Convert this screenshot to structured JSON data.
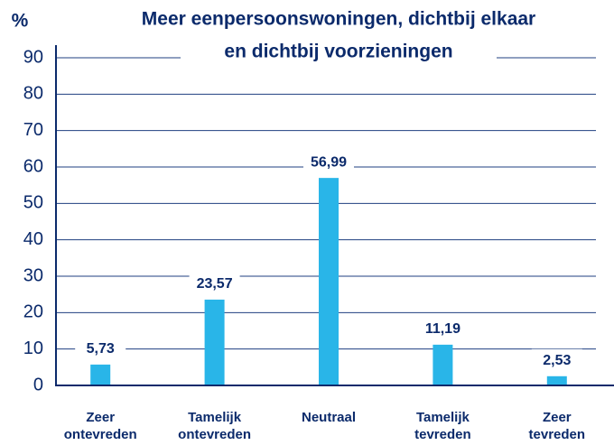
{
  "chart_data": {
    "type": "bar",
    "title": [
      "Meer eenpersoonswoningen, dichtbij elkaar",
      "en dichtbij voorzieningen"
    ],
    "y_label": "%",
    "categories": [
      [
        "Zeer",
        "ontevreden"
      ],
      [
        "Tamelijk",
        "ontevreden"
      ],
      [
        "Neutraal"
      ],
      [
        "Tamelijk",
        "tevreden"
      ],
      [
        "Zeer",
        "tevreden"
      ]
    ],
    "values": [
      5.73,
      23.57,
      56.99,
      11.19,
      2.53
    ],
    "value_labels": [
      "5,73",
      "23,57",
      "56,99",
      "11,19",
      "2,53"
    ],
    "color": "#29b5e8",
    "ylim": [
      0,
      90
    ],
    "yticks": [
      0,
      10,
      20,
      30,
      40,
      50,
      60,
      70,
      80,
      90
    ],
    "grid": true
  }
}
